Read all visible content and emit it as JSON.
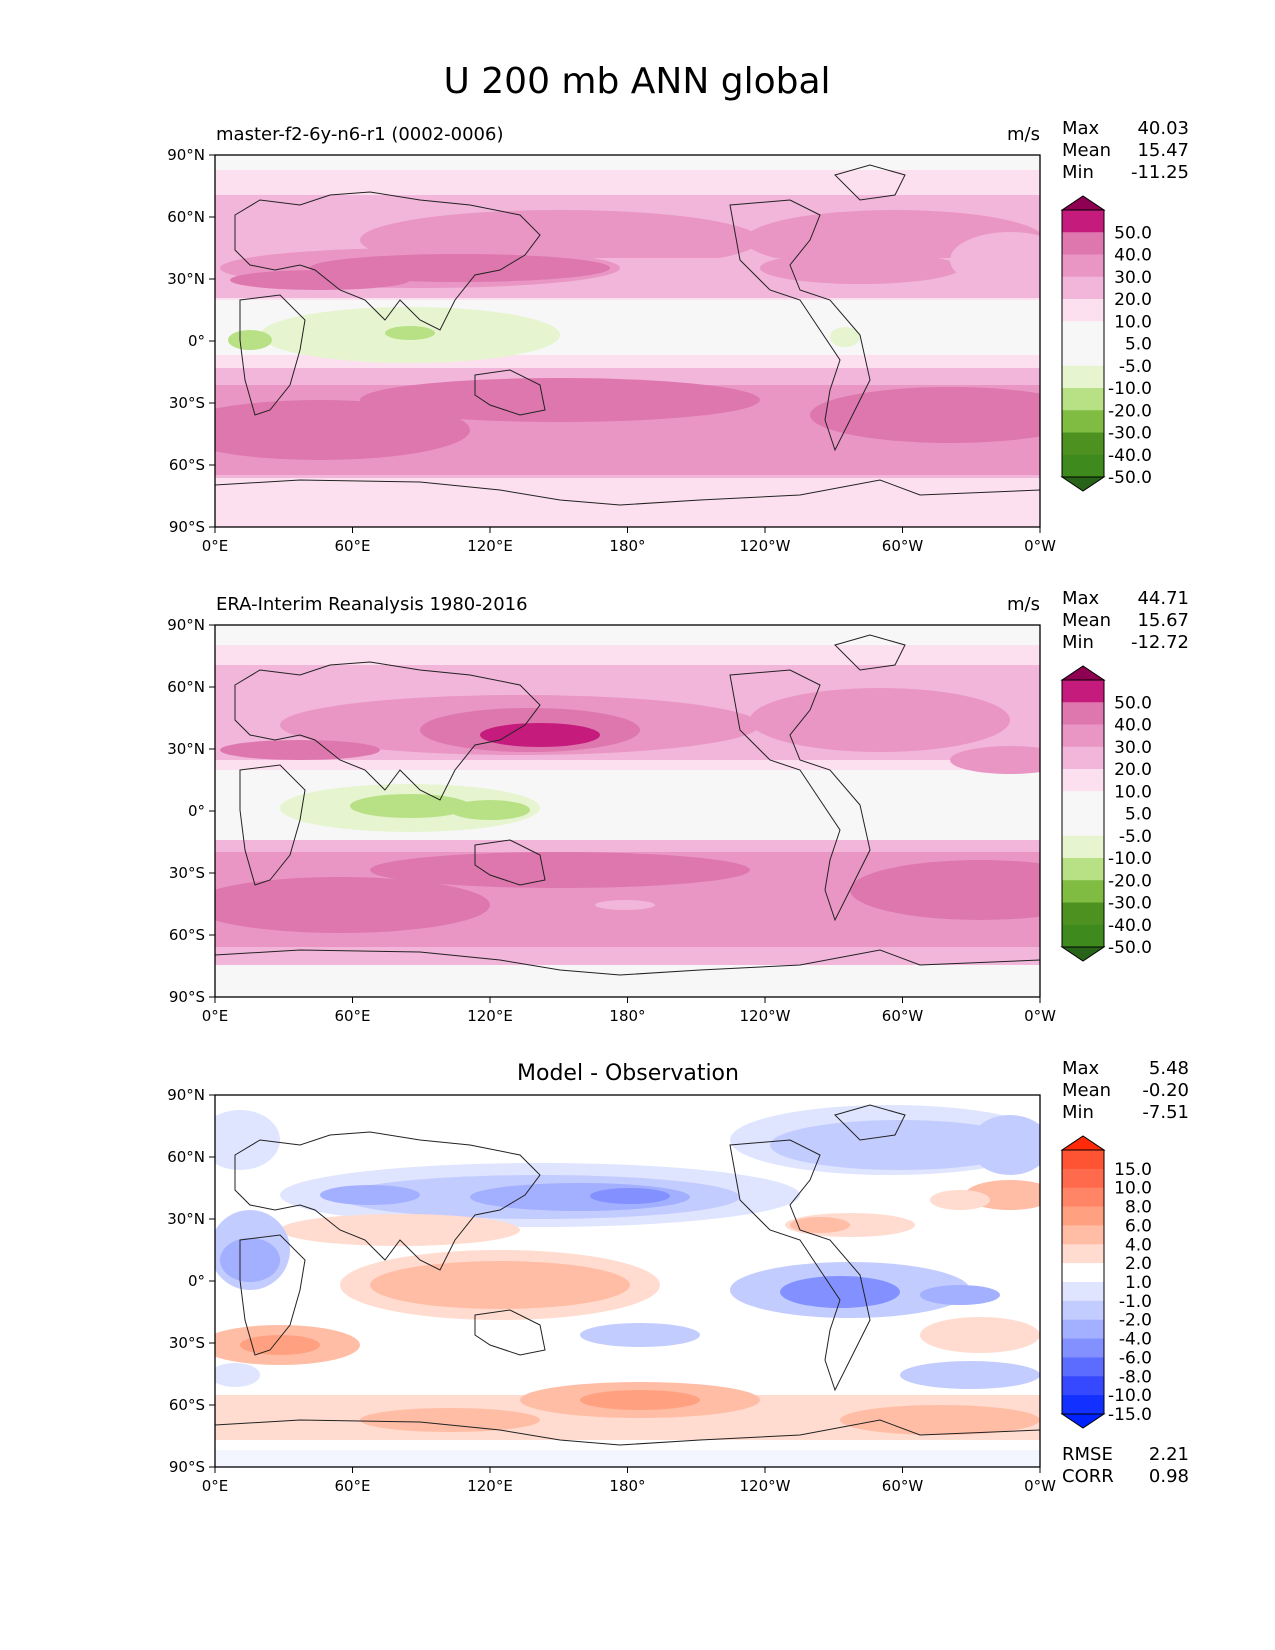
{
  "figure": {
    "title": "U 200 mb ANN global"
  },
  "axes": {
    "x_ticks": [
      "0°E",
      "60°E",
      "120°E",
      "180°",
      "120°W",
      "60°W",
      "0°W"
    ],
    "y_ticks": [
      "90°N",
      "60°N",
      "30°N",
      "0°",
      "30°S",
      "60°S",
      "90°S"
    ]
  },
  "panels": [
    {
      "title": "master-f2-6y-n6-r1 (0002-0006)",
      "units": "m/s",
      "stats": {
        "labels": [
          "Max",
          "Mean",
          "Min"
        ],
        "values": [
          "40.03",
          "15.47",
          "-11.25"
        ]
      },
      "colorbar": {
        "labels": [
          "50.0",
          "40.0",
          "30.0",
          "20.0",
          "10.0",
          "5.0",
          "-5.0",
          "-10.0",
          "-20.0",
          "-30.0",
          "-40.0",
          "-50.0"
        ],
        "colors": [
          "#8e0152",
          "#c51b7d",
          "#de77ae",
          "#e996c4",
          "#f1b6da",
          "#fde0ef",
          "#f7f7f7",
          "#f7f7f7",
          "#e6f5d0",
          "#b8e186",
          "#7fbc41",
          "#4d9221",
          "#3f8a1d",
          "#276419"
        ]
      }
    },
    {
      "title": "ERA-Interim Reanalysis 1980-2016",
      "units": "m/s",
      "stats": {
        "labels": [
          "Max",
          "Mean",
          "Min"
        ],
        "values": [
          "44.71",
          "15.67",
          "-12.72"
        ]
      },
      "colorbar": {
        "labels": [
          "50.0",
          "40.0",
          "30.0",
          "20.0",
          "10.0",
          "5.0",
          "-5.0",
          "-10.0",
          "-20.0",
          "-30.0",
          "-40.0",
          "-50.0"
        ],
        "colors": [
          "#8e0152",
          "#c51b7d",
          "#de77ae",
          "#e996c4",
          "#f1b6da",
          "#fde0ef",
          "#f7f7f7",
          "#f7f7f7",
          "#e6f5d0",
          "#b8e186",
          "#7fbc41",
          "#4d9221",
          "#3f8a1d",
          "#276419"
        ]
      }
    },
    {
      "title": "Model - Observation",
      "units": "",
      "stats": {
        "labels": [
          "Max",
          "Mean",
          "Min"
        ],
        "values": [
          "5.48",
          "-0.20",
          "-7.51"
        ]
      },
      "colorbar": {
        "labels": [
          "15.0",
          "10.0",
          "8.0",
          "6.0",
          "4.0",
          "2.0",
          "1.0",
          "-1.0",
          "-2.0",
          "-4.0",
          "-6.0",
          "-8.0",
          "-10.0",
          "-15.0"
        ],
        "colors": [
          "#ff2a0a",
          "#ff5433",
          "#ff6a4d",
          "#ff8566",
          "#ffa180",
          "#ffbda6",
          "#ffdccf",
          "#ffffff",
          "#dfe4ff",
          "#c3ccff",
          "#a3afff",
          "#8291ff",
          "#5c6cff",
          "#3649ff",
          "#1230ff",
          "#0022ff"
        ]
      },
      "summary": {
        "labels": [
          "RMSE",
          "CORR"
        ],
        "values": [
          "2.21",
          "0.98"
        ]
      }
    }
  ]
}
